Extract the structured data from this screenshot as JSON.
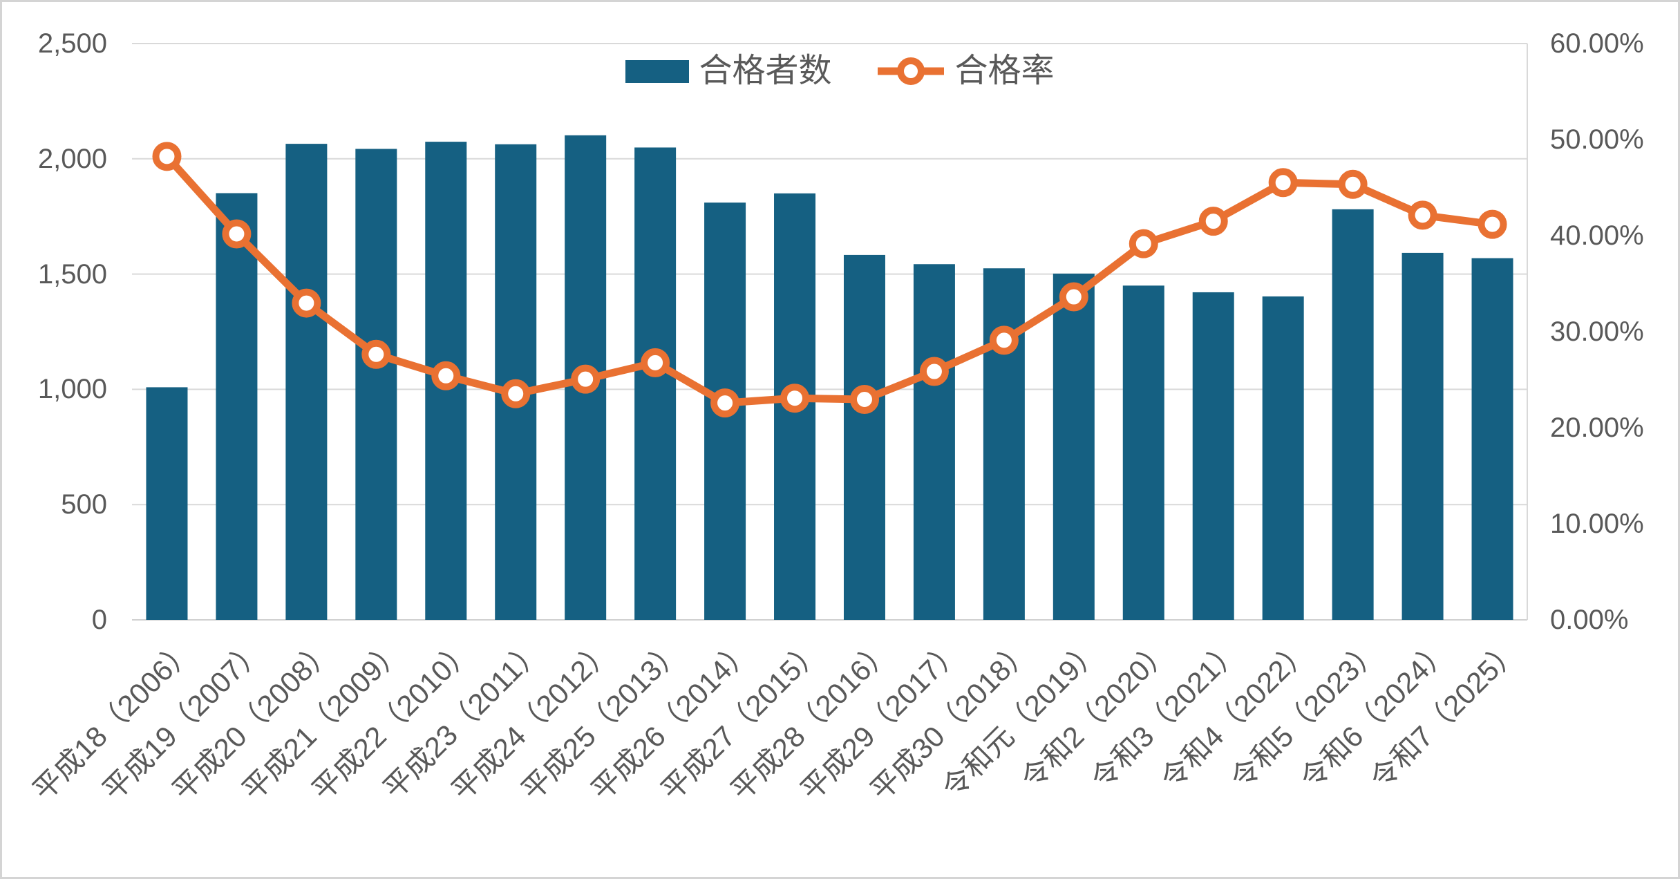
{
  "legend": {
    "bar_label": "合格者数",
    "line_label": "合格率"
  },
  "left_axis": {
    "tick_labels": [
      "0",
      "500",
      "1,000",
      "1,500",
      "2,000",
      "2,500"
    ],
    "tick_values": [
      0,
      500,
      1000,
      1500,
      2000,
      2500
    ]
  },
  "right_axis": {
    "tick_labels": [
      "0.00%",
      "10.00%",
      "20.00%",
      "30.00%",
      "40.00%",
      "50.00%",
      "60.00%"
    ],
    "tick_values": [
      0,
      10,
      20,
      30,
      40,
      50,
      60
    ]
  },
  "colors": {
    "bar": "#156082",
    "line": "#E97132",
    "marker_fill": "#FFFFFF",
    "grid": "#D9D9D9",
    "axis_line": "#D9D9D9",
    "text": "#595959",
    "frame_border": "#D4D4D4",
    "background": "#FFFFFF"
  },
  "chart_data": {
    "type": "bar+line combo",
    "title": "",
    "categories": [
      "平成18（2006）",
      "平成19（2007）",
      "平成20（2008）",
      "平成21（2009）",
      "平成22（2010）",
      "平成23（2011）",
      "平成24（2012）",
      "平成25（2013）",
      "平成26（2014）",
      "平成27（2015）",
      "平成28（2016）",
      "平成29（2017）",
      "平成30（2018）",
      "令和元（2019）",
      "令和2（2020）",
      "令和3（2021）",
      "令和4（2022）",
      "令和5（2023）",
      "令和6（2024）",
      "令和7（2025）"
    ],
    "category_years": [
      2006,
      2007,
      2008,
      2009,
      2010,
      2011,
      2012,
      2013,
      2014,
      2015,
      2016,
      2017,
      2018,
      2019,
      2020,
      2021,
      2022,
      2023,
      2024,
      2025
    ],
    "series": [
      {
        "name": "合格者数",
        "type": "bar",
        "axis": "left",
        "values": [
          1009,
          1851,
          2065,
          2043,
          2074,
          2063,
          2102,
          2049,
          1810,
          1850,
          1583,
          1543,
          1525,
          1502,
          1450,
          1421,
          1403,
          1781,
          1592,
          1569
        ]
      },
      {
        "name": "合格率",
        "type": "line",
        "axis": "right",
        "values_percent": [
          48.25,
          40.18,
          32.98,
          27.64,
          25.41,
          23.54,
          25.06,
          26.77,
          22.58,
          23.08,
          22.95,
          25.86,
          29.11,
          33.63,
          39.16,
          41.5,
          45.52,
          45.34,
          42.13,
          41.18
        ]
      }
    ],
    "left_axis_range": [
      0,
      2500
    ],
    "right_axis_range": [
      0,
      60
    ],
    "gridlines": "horizontal, at every 500 on left axis",
    "legend_position": "top center",
    "x_label_rotation_deg": 45
  }
}
